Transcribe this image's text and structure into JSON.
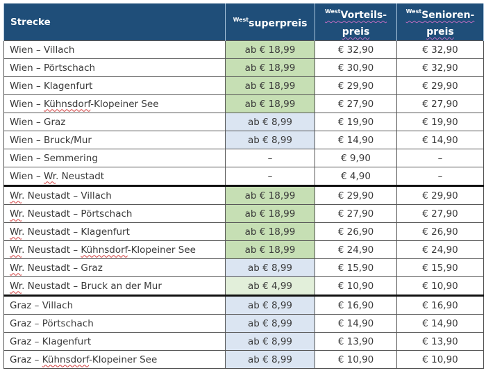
{
  "header": {
    "strecke": "Strecke",
    "superpreis": {
      "prefix": "West",
      "label": "superpreis"
    },
    "vorteilspreis": {
      "prefix": "West",
      "label_line1": "Vorteils-",
      "label_line2": "preis"
    },
    "seniorenpreis": {
      "prefix": "West",
      "label_line1": "Senioren-",
      "label_line2": "preis"
    }
  },
  "colors": {
    "header_bg": "#1f4e79",
    "superpreis_green": "#c6dfb4",
    "superpreis_blue": "#dbe5f2",
    "superpreis_lightgreen": "#e2efda"
  },
  "groups": [
    {
      "rows": [
        {
          "from": "Wien",
          "sep": " – ",
          "to": "Villach",
          "superpreis": "ab € 18,99",
          "superpreis_color": "green",
          "vorteilspreis": "€ 32,90",
          "seniorenpreis": "€ 32,90"
        },
        {
          "from": "Wien",
          "sep": " – ",
          "to": "Pörtschach",
          "superpreis": "ab € 18,99",
          "superpreis_color": "green",
          "vorteilspreis": "€ 30,90",
          "seniorenpreis": "€ 32,90"
        },
        {
          "from": "Wien",
          "sep": " – ",
          "to": "Klagenfurt",
          "superpreis": "ab € 18,99",
          "superpreis_color": "green",
          "vorteilspreis": "€ 29,90",
          "seniorenpreis": "€ 29,90"
        },
        {
          "from": "Wien",
          "sep": " – ",
          "to": "Kühnsdorf-Klopeiner See",
          "superpreis": "ab € 18,99",
          "superpreis_color": "green",
          "vorteilspreis": "€ 27,90",
          "seniorenpreis": "€ 27,90"
        },
        {
          "from": "Wien",
          "sep": " – ",
          "to": "Graz",
          "superpreis": "ab € 8,99",
          "superpreis_color": "blue",
          "vorteilspreis": "€ 19,90",
          "seniorenpreis": "€ 19,90"
        },
        {
          "from": "Wien",
          "sep": " – ",
          "to": "Bruck/Mur",
          "superpreis": "ab € 8,99",
          "superpreis_color": "blue",
          "vorteilspreis": "€ 14,90",
          "seniorenpreis": "€ 14,90"
        },
        {
          "from": "Wien",
          "sep": " – ",
          "to": "Semmering",
          "superpreis": "–",
          "superpreis_color": "none",
          "vorteilspreis": "€ 9,90",
          "seniorenpreis": "–"
        },
        {
          "from": "Wien",
          "sep": " – ",
          "to": "Wr. Neustadt",
          "superpreis": "–",
          "superpreis_color": "none",
          "vorteilspreis": "€ 4,90",
          "seniorenpreis": "–"
        }
      ]
    },
    {
      "rows": [
        {
          "from": "Wr. Neustadt",
          "sep": " – ",
          "to": "Villach",
          "superpreis": "ab € 18,99",
          "superpreis_color": "green",
          "vorteilspreis": "€ 29,90",
          "seniorenpreis": "€ 29,90"
        },
        {
          "from": "Wr. Neustadt",
          "sep": " – ",
          "to": "Pörtschach",
          "superpreis": "ab € 18,99",
          "superpreis_color": "green",
          "vorteilspreis": "€ 27,90",
          "seniorenpreis": "€ 27,90"
        },
        {
          "from": "Wr. Neustadt",
          "sep": " – ",
          "to": "Klagenfurt",
          "superpreis": "ab € 18,99",
          "superpreis_color": "green",
          "vorteilspreis": "€ 26,90",
          "seniorenpreis": "€ 26,90"
        },
        {
          "from": "Wr. Neustadt",
          "sep": " – ",
          "to": "Kühnsdorf-Klopeiner See",
          "superpreis": "ab € 18,99",
          "superpreis_color": "green",
          "vorteilspreis": "€ 24,90",
          "seniorenpreis": "€ 24,90"
        },
        {
          "from": "Wr. Neustadt",
          "sep": " – ",
          "to": "Graz",
          "superpreis": "ab € 8,99",
          "superpreis_color": "blue",
          "vorteilspreis": "€ 15,90",
          "seniorenpreis": "€ 15,90"
        },
        {
          "from": "Wr. Neustadt",
          "sep": " – ",
          "to": "Bruck an der Mur",
          "superpreis": "ab € 4,99",
          "superpreis_color": "lightgreen",
          "vorteilspreis": "€ 10,90",
          "seniorenpreis": "€ 10,90"
        }
      ]
    },
    {
      "rows": [
        {
          "from": "Graz",
          "sep": " – ",
          "to": "Villach",
          "superpreis": "ab € 8,99",
          "superpreis_color": "blue",
          "vorteilspreis": "€ 16,90",
          "seniorenpreis": "€ 16,90"
        },
        {
          "from": "Graz",
          "sep": " – ",
          "to": "Pörtschach",
          "superpreis": "ab € 8,99",
          "superpreis_color": "blue",
          "vorteilspreis": "€ 14,90",
          "seniorenpreis": "€ 14,90"
        },
        {
          "from": "Graz",
          "sep": " – ",
          "to": "Klagenfurt",
          "superpreis": "ab € 8,99",
          "superpreis_color": "blue",
          "vorteilspreis": "€ 13,90",
          "seniorenpreis": "€ 13,90"
        },
        {
          "from": "Graz",
          "sep": " – ",
          "to": "Kühnsdorf-Klopeiner See",
          "superpreis": "ab € 8,99",
          "superpreis_color": "blue",
          "vorteilspreis": "€ 10,90",
          "seniorenpreis": "€ 10,90"
        }
      ]
    }
  ]
}
